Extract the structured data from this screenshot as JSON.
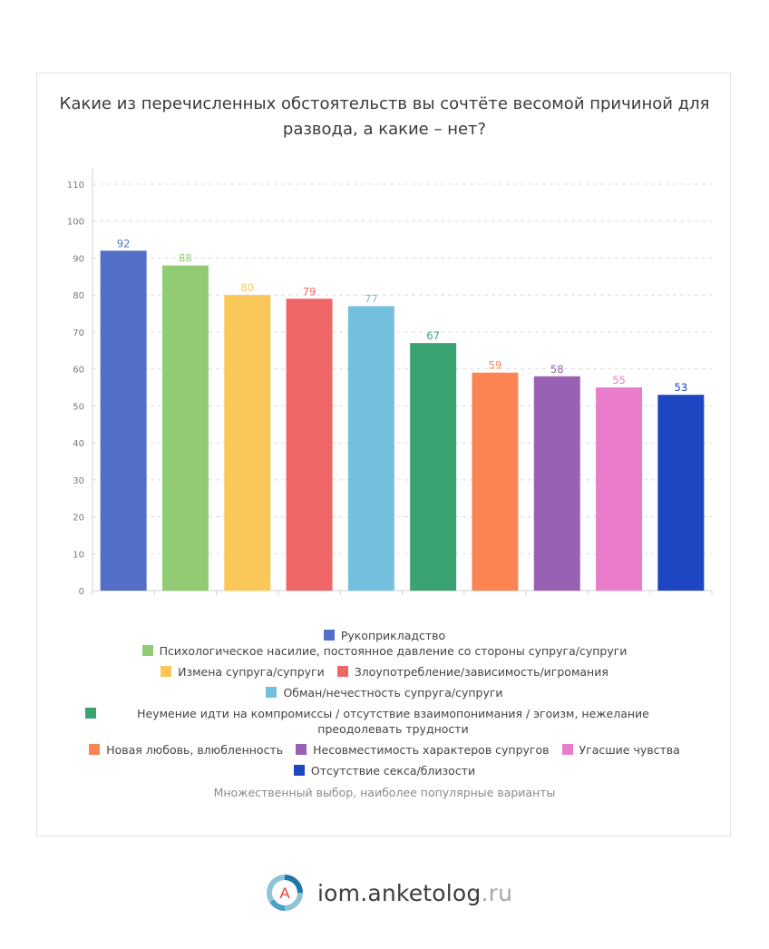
{
  "chart_data": {
    "type": "bar",
    "title": [
      "Какие из перечисленных обстоятельств вы сочтёте весомой причиной для",
      "развода, а какие – нет?"
    ],
    "categories": [
      "Рукоприкладство",
      "Психологическое насилие, постоянное давление со стороны супруга/супруги",
      "Измена супруга/супруги",
      "Злоупотребление/зависимость/игромания",
      "Обман/нечестность супруга/супруги",
      "Неумение идти на компромиссы / отсутствие взаимопонимания / эгоизм, нежелание преодолевать трудности",
      "Новая любовь, влюбленность",
      "Несовместимость характеров супругов",
      "Угасшие чувства",
      "Отсутствие секса/близости"
    ],
    "values": [
      92,
      88,
      80,
      79,
      77,
      67,
      59,
      58,
      55,
      53
    ],
    "colors": [
      "#5470c6",
      "#91cc75",
      "#fac858",
      "#ee6666",
      "#73c0de",
      "#3ba272",
      "#fc8452",
      "#9a60b4",
      "#ea7ccc",
      "#1e45c2"
    ],
    "ylim": [
      0,
      110
    ],
    "yticks": [
      0,
      10,
      20,
      30,
      40,
      50,
      60,
      70,
      80,
      90,
      100,
      110
    ],
    "grid": true,
    "legend_position": "bottom"
  },
  "note": "Множественный выбор, наиболее популярные варианты",
  "brand": {
    "name": "iom.anketolog",
    "tld": ".ru",
    "logo_letter": "A"
  }
}
